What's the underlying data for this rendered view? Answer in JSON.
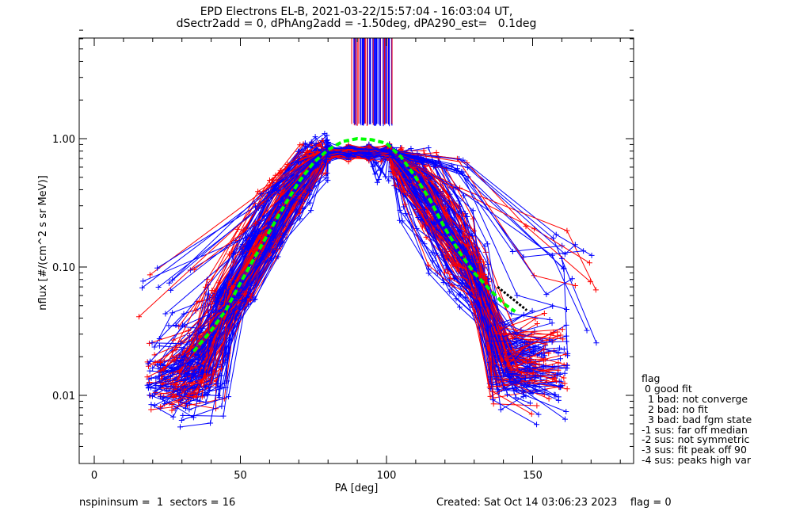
{
  "chart_data": {
    "type": "line",
    "title": "EPD Electrons EL-B, 2021-03-22/15:57:04 - 16:03:04 UT,",
    "subtitle": "dSectr2add = 0, dPhAng2add = -1.50deg, dPA290_est=   0.1deg",
    "xlabel": "PA [deg]",
    "ylabel": "nflux [#/(cm^2 s sr MeV)]",
    "xlim": [
      -5,
      185
    ],
    "ylim": [
      0.0032,
      7.5
    ],
    "yscale": "log",
    "xticks": [
      0,
      50,
      100,
      150
    ],
    "yticks": [
      {
        "value": 0.01,
        "label": "0.01"
      },
      {
        "value": 0.1,
        "label": "0.10"
      },
      {
        "value": 1.0,
        "label": "1.00"
      }
    ],
    "colors": {
      "series_a": "#0000ff",
      "series_b": "#ff0000",
      "fit": "#00ff00",
      "fit_tail": "#000000",
      "frame": "#000000"
    },
    "fit_curve": {
      "x": [
        34,
        40,
        45,
        50,
        55,
        60,
        65,
        70,
        75,
        80,
        85,
        90,
        95,
        100,
        105,
        110,
        115,
        120,
        125,
        130,
        135,
        140,
        144
      ],
      "y": [
        0.022,
        0.032,
        0.046,
        0.075,
        0.12,
        0.19,
        0.3,
        0.46,
        0.65,
        0.82,
        0.95,
        1.0,
        0.98,
        0.92,
        0.72,
        0.5,
        0.33,
        0.2,
        0.13,
        0.09,
        0.068,
        0.052,
        0.045
      ]
    },
    "fit_tail": {
      "x": [
        138,
        148
      ],
      "y": [
        0.07,
        0.046
      ]
    },
    "central_spikes_x_range": [
      88,
      102
    ]
  },
  "flag_legend": {
    "title": "flag",
    "items": [
      " 0 good fit",
      "  1 bad: not converge",
      "  2 bad: no fit",
      "  3 bad: bad fgm state",
      "-1 sus: far off median",
      "-2 sus: not symmetric",
      "-3 sus: fit peak off 90",
      "-4 sus: peaks high var"
    ]
  },
  "footer": {
    "left": "nspininsum =  1  sectors = 16",
    "right": "Created: Sat Oct 14 03:06:23 2023    flag = 0"
  }
}
